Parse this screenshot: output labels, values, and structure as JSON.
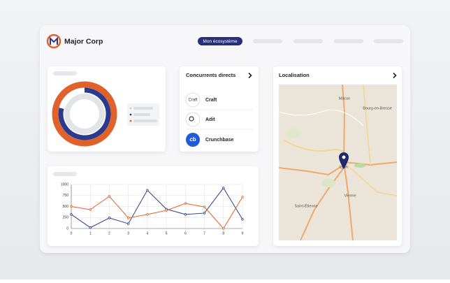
{
  "header": {
    "brand": "Major Corp",
    "active_tab": "Mon écosystème"
  },
  "competitors": {
    "title": "Concurrents directs",
    "items": [
      {
        "name": "Craft",
        "logo": "Craft"
      },
      {
        "name": "Adit"
      },
      {
        "name": "Crunchbase",
        "logo": "cb"
      }
    ]
  },
  "map": {
    "title": "Localisation",
    "places": [
      "Mâcon",
      "Bourg-en-Bresse",
      "Lyon",
      "Vienne",
      "Saint-Étienne"
    ]
  },
  "chart_data": {
    "type": "line",
    "x": [
      0,
      1,
      2,
      3,
      4,
      5,
      6,
      7,
      8,
      9
    ],
    "xlim": [
      0,
      9
    ],
    "xticks": [
      0,
      1,
      2,
      3,
      4,
      5,
      6,
      7,
      8,
      9
    ],
    "ylim": [
      0,
      1000
    ],
    "yticks": [
      0,
      250,
      500,
      750,
      1000
    ],
    "grid": true,
    "series": [
      {
        "color": "#2b3a8c",
        "values": [
          320,
          20,
          240,
          110,
          870,
          440,
          320,
          350,
          920,
          210
        ]
      },
      {
        "color": "#e0622a",
        "values": [
          500,
          430,
          730,
          240,
          320,
          410,
          570,
          490,
          0,
          715
        ]
      }
    ]
  }
}
